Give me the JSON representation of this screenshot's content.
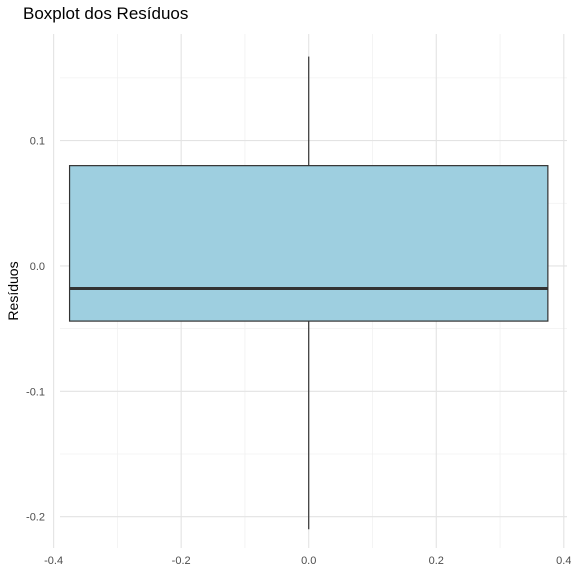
{
  "chart_data": {
    "type": "boxplot",
    "title": "Boxplot dos Resíduos",
    "xlabel": "",
    "ylabel": "Resíduos",
    "xlim": [
      -0.39,
      0.405
    ],
    "ylim": [
      -0.225,
      0.185
    ],
    "x_ticks": [
      -0.4,
      -0.2,
      0.0,
      0.2,
      0.4
    ],
    "x_tick_labels": [
      "-0.4",
      "-0.2",
      "0.0",
      "0.2",
      "0.4"
    ],
    "y_ticks": [
      -0.2,
      -0.1,
      0.0,
      0.1
    ],
    "y_tick_labels": [
      "-0.2",
      "-0.1",
      "0.0",
      "0.1"
    ],
    "grid": true,
    "legend": "none",
    "box": {
      "x_center": 0.0,
      "x_halfwidth": 0.375,
      "min": -0.21,
      "q1": -0.044,
      "median": -0.018,
      "q3": 0.08,
      "max": 0.167
    },
    "colors": {
      "box_fill": "#9ecfe0",
      "box_stroke": "#333333",
      "median": "#333333",
      "whisker": "#333333",
      "grid_major": "#e3e3e3",
      "grid_minor": "#f1f1f1",
      "tick_text": "#4d4d4d",
      "background": "#ffffff"
    }
  }
}
